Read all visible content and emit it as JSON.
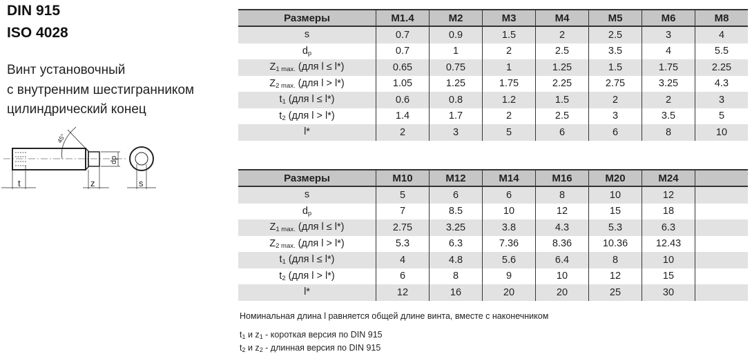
{
  "header": {
    "title1": "DIN 915",
    "title2": "ISO 4028"
  },
  "description": [
    "Винт установочный",
    "с внутренним шестигранником",
    "цилиндрический конец"
  ],
  "drawing": {
    "labels": {
      "t": "t",
      "z": "z",
      "dp": "dp",
      "s": "s",
      "angle": "45°"
    }
  },
  "row_labels": [
    {
      "main": "s",
      "sub": "",
      "rest": ""
    },
    {
      "main": "d",
      "sub": "p",
      "rest": ""
    },
    {
      "main": "Z",
      "sub": "1 max.",
      "rest": " (для l ≤ l*)"
    },
    {
      "main": "Z",
      "sub": "2 max.",
      "rest": " (для l > l*)"
    },
    {
      "main": "t",
      "sub": "1",
      "rest": " (для l ≤ l*)"
    },
    {
      "main": "t",
      "sub": "2",
      "rest": " (для l > l*)"
    },
    {
      "main": "l*",
      "sub": "",
      "rest": ""
    }
  ],
  "tables": [
    {
      "header_label": "Размеры",
      "columns": [
        "M1.4",
        "M2",
        "M3",
        "M4",
        "M5",
        "M6",
        "M8"
      ],
      "rows": [
        [
          "0.7",
          "0.9",
          "1.5",
          "2",
          "2.5",
          "3",
          "4"
        ],
        [
          "0.7",
          "1",
          "2",
          "2.5",
          "3.5",
          "4",
          "5.5"
        ],
        [
          "0.65",
          "0.75",
          "1",
          "1.25",
          "1.5",
          "1.75",
          "2.25"
        ],
        [
          "1.05",
          "1.25",
          "1.75",
          "2.25",
          "2.75",
          "3.25",
          "4.3"
        ],
        [
          "0.6",
          "0.8",
          "1.2",
          "1.5",
          "2",
          "2",
          "3"
        ],
        [
          "1.4",
          "1.7",
          "2",
          "2.5",
          "3",
          "3.5",
          "5"
        ],
        [
          "2",
          "3",
          "5",
          "6",
          "6",
          "8",
          "10"
        ]
      ]
    },
    {
      "header_label": "Размеры",
      "columns": [
        "M10",
        "M12",
        "M14",
        "M16",
        "M20",
        "M24",
        ""
      ],
      "rows": [
        [
          "5",
          "6",
          "6",
          "8",
          "10",
          "12",
          ""
        ],
        [
          "7",
          "8.5",
          "10",
          "12",
          "15",
          "18",
          ""
        ],
        [
          "2.75",
          "3.25",
          "3.8",
          "4.3",
          "5.3",
          "6.3",
          ""
        ],
        [
          "5.3",
          "6.3",
          "7.36",
          "8.36",
          "10.36",
          "12.43",
          ""
        ],
        [
          "4",
          "4.8",
          "5.6",
          "6.4",
          "8",
          "10",
          ""
        ],
        [
          "6",
          "8",
          "9",
          "10",
          "12",
          "15",
          ""
        ],
        [
          "12",
          "16",
          "20",
          "20",
          "25",
          "30",
          ""
        ]
      ]
    }
  ],
  "notes": {
    "line1": "Номинальная длина l равняется общей длине винта, вместе с наконечником",
    "line2": {
      "a": "t",
      "a_sub": "1",
      "b": " и z",
      "b_sub": "1",
      "rest": " - короткая  версия по  DIN 915"
    },
    "line3": {
      "a": "t",
      "a_sub": "2",
      "b": " и z",
      "b_sub": "2",
      "rest": " - длинная версия по DIN 915"
    }
  }
}
